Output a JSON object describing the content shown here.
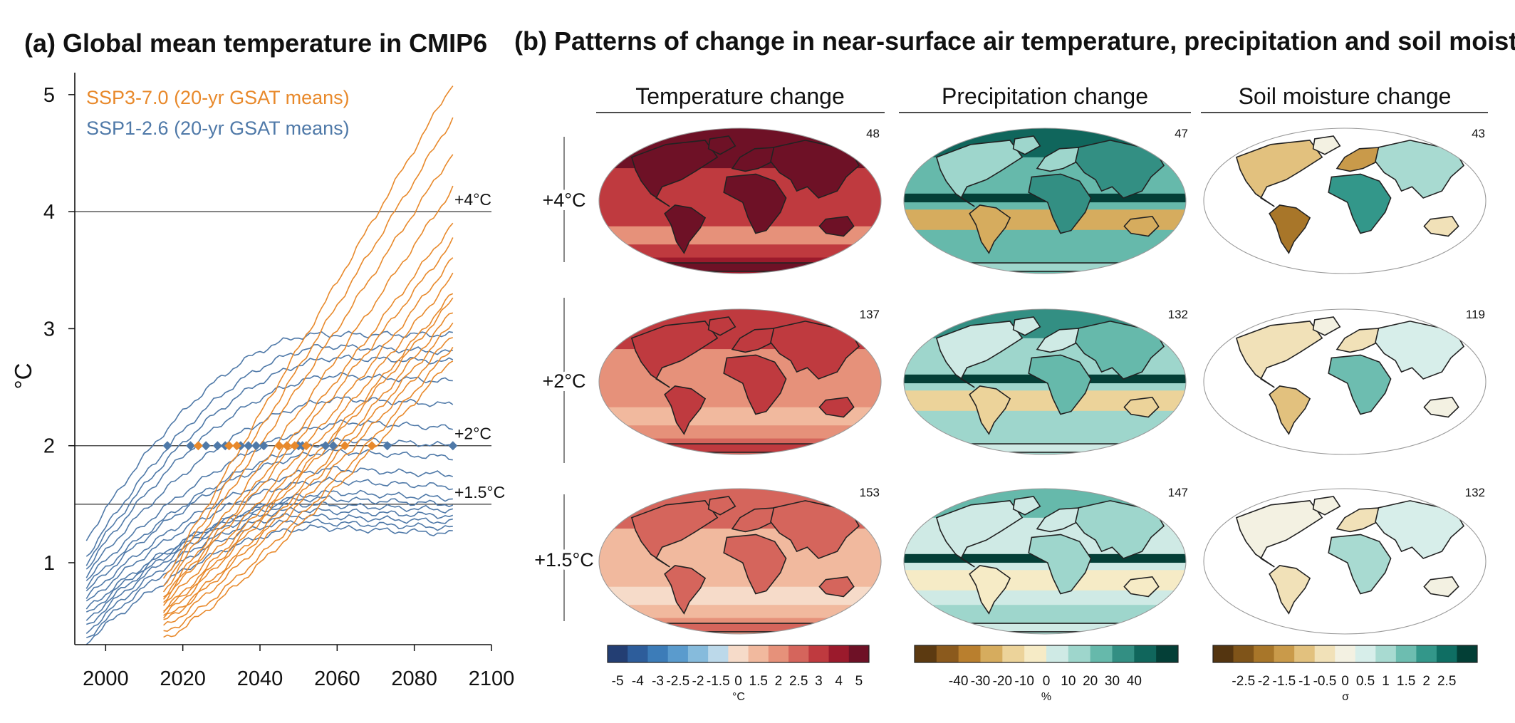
{
  "panel_a": {
    "title": "(a) Global mean temperature in CMIP6",
    "ylabel": "°C",
    "legend": [
      {
        "label": "SSP3-7.0 (20-yr GSAT means)",
        "color": "#e8892b"
      },
      {
        "label": "SSP1-2.6 (20-yr GSAT means)",
        "color": "#4f79a8"
      }
    ],
    "thresholds": [
      {
        "label": "+4°C",
        "value": 4
      },
      {
        "label": "+2°C",
        "value": 2
      },
      {
        "label": "+1.5°C",
        "value": 1.5
      }
    ]
  },
  "panel_b": {
    "title": "(b) Patterns of change in near-surface air temperature, precipitation and soil moisture",
    "columns": [
      "Temperature change",
      "Precipitation change",
      "Soil moisture change"
    ],
    "rows": [
      "+4°C",
      "+2°C",
      "+1.5°C"
    ],
    "counts": [
      [
        "48",
        "47",
        "43"
      ],
      [
        "137",
        "132",
        "119"
      ],
      [
        "153",
        "147",
        "132"
      ]
    ],
    "colorbars": [
      {
        "unit": "°C",
        "ticks": [
          "-5",
          "-4",
          "-3",
          "-2.5",
          "-2",
          "-1.5",
          "0",
          "1.5",
          "2",
          "2.5",
          "3",
          "4",
          "5"
        ],
        "colors": [
          "#233e73",
          "#2d5d9b",
          "#3c7cb8",
          "#5a9bcd",
          "#86bbdc",
          "#bcd9ea",
          "#f6dbc9",
          "#f1b99e",
          "#e6917a",
          "#d5655c",
          "#bf3a3f",
          "#9b1a2c",
          "#6e1126"
        ]
      },
      {
        "unit": "%",
        "ticks": [
          "-40",
          "-30",
          "-20",
          "-10",
          "0",
          "10",
          "20",
          "30",
          "40"
        ],
        "colors": [
          "#5c3a11",
          "#8b5a1d",
          "#b97f2e",
          "#d6ac5e",
          "#ecd39a",
          "#f6ebc6",
          "#cfeae5",
          "#9ed6cc",
          "#66b9ab",
          "#338f83",
          "#10665c",
          "#043f37"
        ]
      },
      {
        "unit": "σ",
        "ticks": [
          "-2.5",
          "-2",
          "-1.5",
          "-1",
          "-0.5",
          "0",
          "0.5",
          "1",
          "1.5",
          "2",
          "2.5"
        ],
        "colors": [
          "#543510",
          "#7f5419",
          "#a87629",
          "#c99a4a",
          "#e2c17e",
          "#f1e1b8",
          "#f3f1e2",
          "#d7eeea",
          "#a8dad1",
          "#6dbdb0",
          "#33978a",
          "#0f6e63",
          "#033f36"
        ]
      }
    ]
  },
  "chart_data": {
    "type": "line",
    "title": "(a) Global mean temperature in CMIP6",
    "xlabel": "",
    "ylabel": "°C",
    "xlim": [
      1992,
      2100
    ],
    "ylim": [
      0.3,
      5.2
    ],
    "xticks": [
      2000,
      2020,
      2040,
      2060,
      2080,
      2100
    ],
    "yticks": [
      1,
      2,
      3,
      4,
      5
    ],
    "grid": false,
    "legend_position": "top-left",
    "series": [
      {
        "name": "SSP3-7.0 (20-yr GSAT means)",
        "color": "#e8892b",
        "members": [
          {
            "start": [
              2015,
              0.85
            ],
            "end": [
              2090,
              5.1
            ],
            "curve": 1.0
          },
          {
            "start": [
              2015,
              0.8
            ],
            "end": [
              2090,
              4.8
            ],
            "curve": 1.0
          },
          {
            "start": [
              2015,
              0.75
            ],
            "end": [
              2090,
              4.5
            ],
            "curve": 1.0
          },
          {
            "start": [
              2015,
              0.72
            ],
            "end": [
              2090,
              4.2
            ],
            "curve": 1.05
          },
          {
            "start": [
              2015,
              0.7
            ],
            "end": [
              2090,
              3.9
            ],
            "curve": 1.05
          },
          {
            "start": [
              2015,
              0.68
            ],
            "end": [
              2090,
              3.75
            ],
            "curve": 1.05
          },
          {
            "start": [
              2015,
              0.65
            ],
            "end": [
              2090,
              3.6
            ],
            "curve": 1.1
          },
          {
            "start": [
              2015,
              0.6
            ],
            "end": [
              2090,
              3.45
            ],
            "curve": 1.1
          },
          {
            "start": [
              2015,
              0.58
            ],
            "end": [
              2090,
              3.3
            ],
            "curve": 1.1
          },
          {
            "start": [
              2015,
              0.55
            ],
            "end": [
              2090,
              3.25
            ],
            "curve": 1.1
          },
          {
            "start": [
              2015,
              0.52
            ],
            "end": [
              2090,
              3.15
            ],
            "curve": 1.15
          },
          {
            "start": [
              2015,
              0.5
            ],
            "end": [
              2090,
              3.05
            ],
            "curve": 1.15
          },
          {
            "start": [
              2015,
              0.45
            ],
            "end": [
              2090,
              2.95
            ],
            "curve": 1.15
          },
          {
            "start": [
              2015,
              0.4
            ],
            "end": [
              2090,
              2.85
            ],
            "curve": 1.2
          },
          {
            "start": [
              2015,
              0.35
            ],
            "end": [
              2090,
              2.75
            ],
            "curve": 1.2
          }
        ]
      },
      {
        "name": "SSP1-2.6 (20-yr GSAT means)",
        "color": "#4f79a8",
        "members": [
          {
            "start": [
              1995,
              1.2
            ],
            "peak": [
              2055,
              2.95
            ],
            "end": [
              2090,
              2.95
            ]
          },
          {
            "start": [
              1995,
              1.05
            ],
            "peak": [
              2058,
              2.85
            ],
            "end": [
              2090,
              2.8
            ]
          },
          {
            "start": [
              1995,
              1.0
            ],
            "peak": [
              2060,
              2.75
            ],
            "end": [
              2090,
              2.72
            ]
          },
          {
            "start": [
              1995,
              0.95
            ],
            "peak": [
              2060,
              2.6
            ],
            "end": [
              2090,
              2.55
            ]
          },
          {
            "start": [
              1995,
              0.9
            ],
            "peak": [
              2062,
              2.4
            ],
            "end": [
              2090,
              2.35
            ]
          },
          {
            "start": [
              1995,
              0.85
            ],
            "peak": [
              2065,
              2.2
            ],
            "end": [
              2090,
              2.15
            ]
          },
          {
            "start": [
              1995,
              0.8
            ],
            "peak": [
              2065,
              2.05
            ],
            "end": [
              2090,
              2.0
            ]
          },
          {
            "start": [
              1995,
              0.75
            ],
            "peak": [
              2060,
              1.95
            ],
            "end": [
              2090,
              1.9
            ]
          },
          {
            "start": [
              1995,
              0.7
            ],
            "peak": [
              2060,
              1.8
            ],
            "end": [
              2090,
              1.75
            ]
          },
          {
            "start": [
              1995,
              0.65
            ],
            "peak": [
              2058,
              1.7
            ],
            "end": [
              2090,
              1.65
            ]
          },
          {
            "start": [
              1995,
              0.6
            ],
            "peak": [
              2060,
              1.6
            ],
            "end": [
              2090,
              1.55
            ]
          },
          {
            "start": [
              1995,
              0.55
            ],
            "peak": [
              2055,
              1.55
            ],
            "end": [
              2090,
              1.5
            ]
          },
          {
            "start": [
              1995,
              0.5
            ],
            "peak": [
              2052,
              1.5
            ],
            "end": [
              2090,
              1.45
            ]
          },
          {
            "start": [
              1995,
              0.45
            ],
            "peak": [
              2050,
              1.45
            ],
            "end": [
              2090,
              1.4
            ]
          },
          {
            "start": [
              1995,
              0.4
            ],
            "peak": [
              2050,
              1.4
            ],
            "end": [
              2090,
              1.35
            ]
          },
          {
            "start": [
              1995,
              0.35
            ],
            "peak": [
              2050,
              1.35
            ],
            "end": [
              2090,
              1.3
            ]
          },
          {
            "start": [
              1995,
              0.32
            ],
            "peak": [
              2055,
              1.3
            ],
            "end": [
              2090,
              1.25
            ]
          }
        ]
      }
    ],
    "crossing_markers": {
      "level": 2,
      "ssp1_2_6_years": [
        2016,
        2022,
        2026,
        2029,
        2031,
        2035,
        2037,
        2039,
        2041,
        2047,
        2050,
        2051,
        2057,
        2059,
        2073,
        2090
      ],
      "ssp3_7_0_years": [
        2024,
        2032,
        2034,
        2045,
        2047,
        2049,
        2052,
        2062,
        2069
      ]
    }
  }
}
